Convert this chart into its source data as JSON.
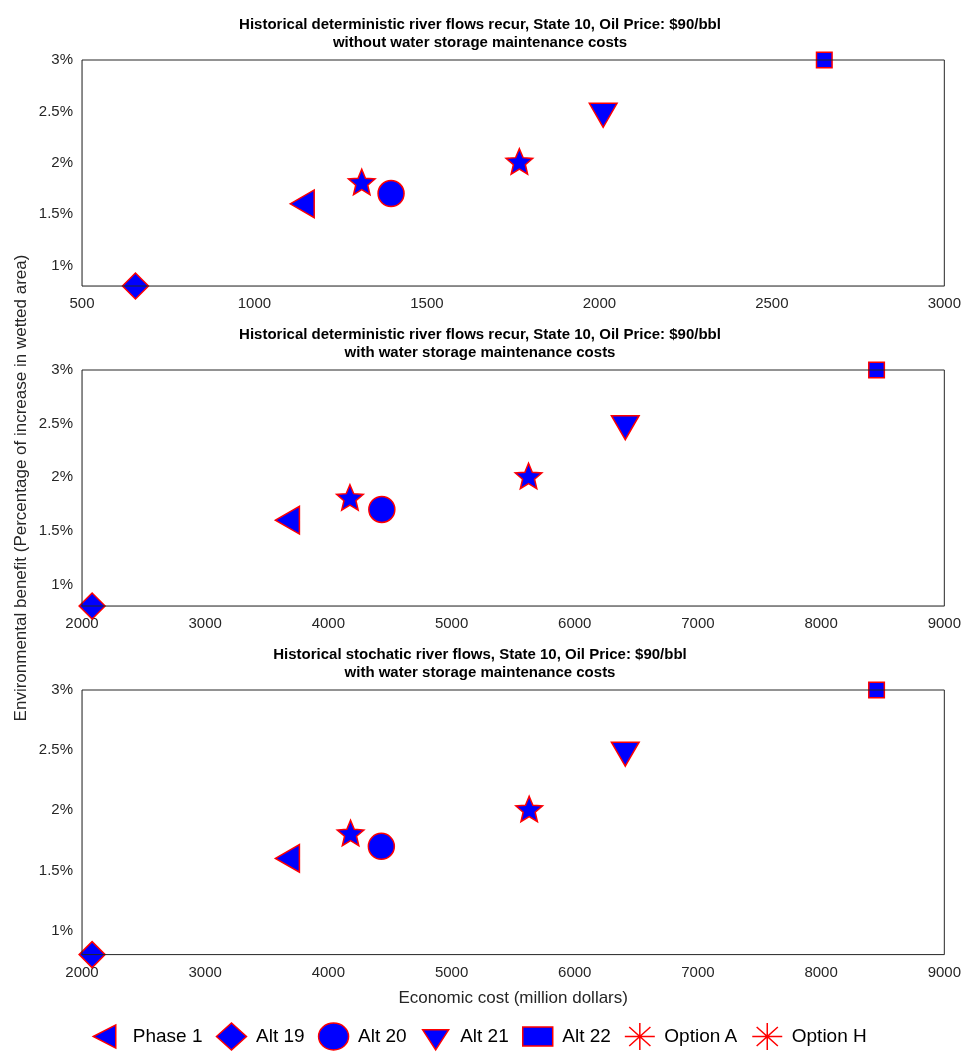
{
  "chart_data": [
    {
      "type": "scatter",
      "title": "Historical deterministic river flows recur, State 10, Oil Price: $90/bbl",
      "subtitle": "without water storage maintenance costs",
      "xlim": [
        500,
        3000
      ],
      "xticks": [
        500,
        1000,
        1500,
        2000,
        2500,
        3000
      ],
      "ylim": [
        0.8,
        3
      ],
      "yticks": [
        {
          "value": 1,
          "label": "1%"
        },
        {
          "value": 1.5,
          "label": "1.5%"
        },
        {
          "value": 2,
          "label": "2%"
        },
        {
          "value": 2.5,
          "label": "2.5%"
        },
        {
          "value": 3,
          "label": "3%"
        }
      ],
      "grid": false,
      "legend": false,
      "series": [
        {
          "color": "#0000ff",
          "marker": "triangle-left",
          "x": [
            1150
          ],
          "values": [
            1.6
          ]
        },
        {
          "color": "#0000ff",
          "marker": "diamond",
          "x": [
            655
          ],
          "values": [
            0.8
          ]
        },
        {
          "color": "#0000ff",
          "marker": "circle",
          "x": [
            1396
          ],
          "values": [
            1.7
          ]
        },
        {
          "color": "#0000ff",
          "marker": "triangle-down",
          "x": [
            2011
          ],
          "values": [
            2.5
          ]
        },
        {
          "color": "#0000ff",
          "marker": "square",
          "x": [
            2652
          ],
          "values": [
            3
          ]
        },
        {
          "color": "#0000ff",
          "marker": "star",
          "x": [
            1768
          ],
          "values": [
            2
          ]
        },
        {
          "color": "#0000ff",
          "marker": "star",
          "x": [
            1311
          ],
          "values": [
            1.8
          ]
        }
      ]
    },
    {
      "type": "scatter",
      "title": "Historical deterministic river flows recur, State 10, Oil Price: $90/bbl",
      "subtitle": "with water storage maintenance costs",
      "ylabel": "Environmental benefit (Percentage of increase in wetted area)",
      "xlim": [
        2000,
        9000
      ],
      "xticks": [
        2000,
        3000,
        4000,
        5000,
        6000,
        7000,
        8000,
        9000
      ],
      "ylim": [
        0.8,
        3
      ],
      "yticks": [
        {
          "value": 1,
          "label": "1%"
        },
        {
          "value": 1.5,
          "label": "1.5%"
        },
        {
          "value": 2,
          "label": "2%"
        },
        {
          "value": 2.5,
          "label": "2.5%"
        },
        {
          "value": 3,
          "label": "3%"
        }
      ],
      "grid": false,
      "legend": false,
      "series": [
        {
          "color": "#0000ff",
          "marker": "triangle-left",
          "x": [
            3700
          ],
          "values": [
            1.6
          ]
        },
        {
          "color": "#0000ff",
          "marker": "diamond",
          "x": [
            2082
          ],
          "values": [
            0.8
          ]
        },
        {
          "color": "#0000ff",
          "marker": "circle",
          "x": [
            4434
          ],
          "values": [
            1.7
          ]
        },
        {
          "color": "#0000ff",
          "marker": "triangle-down",
          "x": [
            6410
          ],
          "values": [
            2.5
          ]
        },
        {
          "color": "#0000ff",
          "marker": "square",
          "x": [
            8450
          ],
          "values": [
            3
          ]
        },
        {
          "color": "#0000ff",
          "marker": "star",
          "x": [
            5625
          ],
          "values": [
            2
          ]
        },
        {
          "color": "#0000ff",
          "marker": "star",
          "x": [
            4175
          ],
          "values": [
            1.8
          ]
        }
      ]
    },
    {
      "type": "scatter",
      "title": "Historical stochatic river flows, State 10, Oil Price: $90/bbl",
      "subtitle": "with water storage maintenance costs",
      "xlabel": "Economic cost (million dollars)",
      "xlim": [
        2000,
        9000
      ],
      "xticks": [
        2000,
        3000,
        4000,
        5000,
        6000,
        7000,
        8000,
        9000
      ],
      "ylim": [
        0.8,
        3
      ],
      "yticks": [
        {
          "value": 1,
          "label": "1%"
        },
        {
          "value": 1.5,
          "label": "1.5%"
        },
        {
          "value": 2,
          "label": "2%"
        },
        {
          "value": 2.5,
          "label": "2.5%"
        },
        {
          "value": 3,
          "label": "3%"
        }
      ],
      "grid": false,
      "legend": "bottom",
      "series": [
        {
          "name": "Phase 1",
          "color": "#0000ff",
          "marker": "triangle-left",
          "x": [
            3700
          ],
          "values": [
            1.6
          ]
        },
        {
          "name": "Alt 19",
          "color": "#0000ff",
          "marker": "diamond",
          "x": [
            2082
          ],
          "values": [
            0.8
          ]
        },
        {
          "name": "Alt 20",
          "color": "#0000ff",
          "marker": "circle",
          "x": [
            4430
          ],
          "values": [
            1.7
          ]
        },
        {
          "name": "Alt 21",
          "color": "#0000ff",
          "marker": "triangle-down",
          "x": [
            6410
          ],
          "values": [
            2.5
          ]
        },
        {
          "name": "Alt 22",
          "color": "#0000ff",
          "marker": "square",
          "x": [
            8450
          ],
          "values": [
            3
          ]
        },
        {
          "name": "Option A",
          "color": "#0000ff",
          "marker": "star",
          "x": [
            5630
          ],
          "values": [
            2
          ]
        },
        {
          "name": "Option H",
          "color": "#0000ff",
          "marker": "star",
          "x": [
            4180
          ],
          "values": [
            1.8
          ]
        }
      ]
    }
  ]
}
